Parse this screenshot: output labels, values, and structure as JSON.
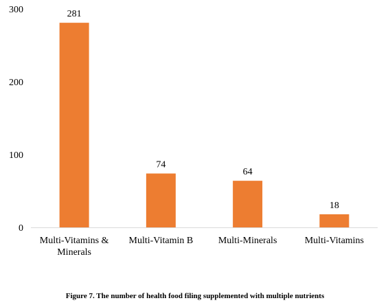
{
  "chart_data": {
    "type": "bar",
    "categories": [
      [
        "Multi-Vitamins &",
        "Minerals"
      ],
      [
        "Multi-Vitamin B"
      ],
      [
        "Multi-Minerals"
      ],
      [
        "Multi-Vitamins"
      ]
    ],
    "values": [
      281,
      74,
      64,
      18
    ],
    "data_labels": [
      "281",
      "74",
      "64",
      "18"
    ],
    "yticks": [
      0,
      100,
      200,
      300
    ],
    "ylim": [
      0,
      300
    ],
    "grid": false,
    "legend": "none",
    "bar_color": "#ED7D31",
    "axis_color": "#D9D9D9"
  },
  "caption": "Figure 7. The number of health food filing supplemented with multiple nutrients"
}
